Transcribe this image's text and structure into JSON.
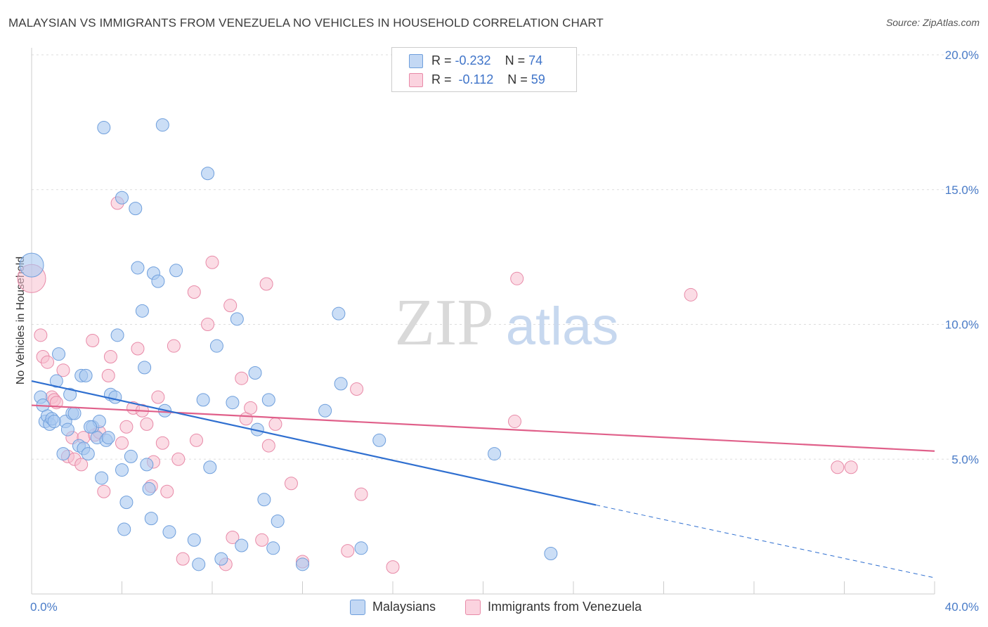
{
  "title": "MALAYSIAN VS IMMIGRANTS FROM VENEZUELA NO VEHICLES IN HOUSEHOLD CORRELATION CHART",
  "source": "Source: ZipAtlas.com",
  "watermark": {
    "zip": "ZIP",
    "atlas": "atlas"
  },
  "legend": {
    "rows": [
      {
        "r_label": "R = ",
        "r_value": "-0.232",
        "n_label": "N = ",
        "n_value": "74"
      },
      {
        "r_label": "R = ",
        "r_value": " -0.112",
        "n_label": "N = ",
        "n_value": "59"
      }
    ]
  },
  "bottom_legend": {
    "series1": "Malaysians",
    "series2": "Immigrants from Venezuela"
  },
  "colors": {
    "blue_fill": "#a9c8f0",
    "blue_stroke": "#6f9fdc",
    "blue_line": "#2f6fd0",
    "pink_fill": "#f7bfd0",
    "pink_stroke": "#e88aa8",
    "pink_line": "#e0608a",
    "tick_text": "#4a7cc8",
    "grid": "#dddddd"
  },
  "chart_data": {
    "type": "scatter",
    "title": "MALAYSIAN VS IMMIGRANTS FROM VENEZUELA NO VEHICLES IN HOUSEHOLD CORRELATION CHART",
    "xlabel": "",
    "ylabel": "No Vehicles in Household",
    "xlim": [
      0,
      40
    ],
    "ylim": [
      0,
      20
    ],
    "x_tick_labels": [
      "0.0%",
      "40.0%"
    ],
    "y_ticks": [
      5,
      10,
      15,
      20
    ],
    "y_tick_labels": [
      "5.0%",
      "10.0%",
      "15.0%",
      "20.0%"
    ],
    "series": [
      {
        "name": "Malaysians",
        "R": -0.232,
        "N": 74,
        "trend": {
          "x": [
            0,
            25
          ],
          "y": [
            7.9,
            3.3
          ],
          "dashed_to": [
            40,
            0.6
          ]
        },
        "points": [
          [
            0.0,
            12.2
          ],
          [
            0.4,
            7.3
          ],
          [
            0.5,
            7.0
          ],
          [
            0.6,
            6.4
          ],
          [
            0.7,
            6.6
          ],
          [
            0.8,
            6.3
          ],
          [
            0.9,
            6.5
          ],
          [
            1.1,
            7.9
          ],
          [
            1.2,
            8.9
          ],
          [
            1.4,
            5.2
          ],
          [
            1.5,
            6.4
          ],
          [
            1.6,
            6.1
          ],
          [
            1.7,
            7.4
          ],
          [
            1.8,
            6.7
          ],
          [
            1.9,
            6.7
          ],
          [
            2.1,
            5.5
          ],
          [
            2.2,
            8.1
          ],
          [
            2.3,
            5.4
          ],
          [
            2.4,
            8.1
          ],
          [
            2.5,
            5.2
          ],
          [
            2.7,
            6.2
          ],
          [
            2.9,
            5.8
          ],
          [
            3.0,
            6.4
          ],
          [
            3.1,
            4.3
          ],
          [
            3.2,
            17.3
          ],
          [
            3.3,
            5.7
          ],
          [
            3.4,
            5.8
          ],
          [
            3.5,
            7.4
          ],
          [
            3.7,
            7.3
          ],
          [
            3.8,
            9.6
          ],
          [
            4.0,
            4.6
          ],
          [
            4.1,
            2.4
          ],
          [
            4.2,
            3.4
          ],
          [
            4.4,
            5.1
          ],
          [
            4.6,
            14.3
          ],
          [
            4.7,
            12.1
          ],
          [
            4.9,
            10.5
          ],
          [
            5.0,
            8.4
          ],
          [
            5.1,
            4.8
          ],
          [
            5.2,
            3.9
          ],
          [
            5.3,
            2.8
          ],
          [
            5.4,
            11.9
          ],
          [
            5.6,
            11.6
          ],
          [
            5.8,
            17.4
          ],
          [
            5.9,
            6.8
          ],
          [
            6.1,
            2.3
          ],
          [
            6.4,
            12.0
          ],
          [
            7.2,
            2.0
          ],
          [
            7.4,
            1.1
          ],
          [
            7.6,
            7.2
          ],
          [
            7.8,
            15.6
          ],
          [
            7.9,
            4.7
          ],
          [
            8.2,
            9.2
          ],
          [
            8.4,
            1.3
          ],
          [
            8.9,
            7.1
          ],
          [
            9.1,
            10.2
          ],
          [
            9.3,
            1.8
          ],
          [
            9.9,
            8.2
          ],
          [
            10.0,
            6.1
          ],
          [
            10.3,
            3.5
          ],
          [
            10.5,
            7.2
          ],
          [
            10.7,
            1.7
          ],
          [
            10.9,
            2.7
          ],
          [
            12.0,
            1.1
          ],
          [
            13.0,
            6.8
          ],
          [
            13.6,
            10.4
          ],
          [
            13.7,
            7.8
          ],
          [
            14.6,
            1.7
          ],
          [
            15.4,
            5.7
          ],
          [
            20.5,
            5.2
          ],
          [
            23.0,
            1.5
          ],
          [
            1.0,
            6.4
          ],
          [
            4.0,
            14.7
          ],
          [
            2.6,
            6.2
          ]
        ]
      },
      {
        "name": "Immigrants from Venezuela",
        "R": -0.112,
        "N": 59,
        "trend": {
          "x": [
            0,
            40
          ],
          "y": [
            7.0,
            5.3
          ]
        },
        "points": [
          [
            0.0,
            11.7
          ],
          [
            0.4,
            9.6
          ],
          [
            0.5,
            8.8
          ],
          [
            0.7,
            8.6
          ],
          [
            0.9,
            7.3
          ],
          [
            1.0,
            7.2
          ],
          [
            1.1,
            7.1
          ],
          [
            1.4,
            8.3
          ],
          [
            1.6,
            5.1
          ],
          [
            1.8,
            5.8
          ],
          [
            1.9,
            5.0
          ],
          [
            2.2,
            4.8
          ],
          [
            2.3,
            5.8
          ],
          [
            2.7,
            9.4
          ],
          [
            2.8,
            5.9
          ],
          [
            3.0,
            6.0
          ],
          [
            3.2,
            3.8
          ],
          [
            3.4,
            8.1
          ],
          [
            3.5,
            8.8
          ],
          [
            3.8,
            14.5
          ],
          [
            4.0,
            5.6
          ],
          [
            4.2,
            6.2
          ],
          [
            4.5,
            6.9
          ],
          [
            4.7,
            9.1
          ],
          [
            4.9,
            6.8
          ],
          [
            5.1,
            6.3
          ],
          [
            5.3,
            4.0
          ],
          [
            5.4,
            4.9
          ],
          [
            5.6,
            7.3
          ],
          [
            5.8,
            5.6
          ],
          [
            6.0,
            3.8
          ],
          [
            6.3,
            9.2
          ],
          [
            6.5,
            5.0
          ],
          [
            6.7,
            1.3
          ],
          [
            7.2,
            11.2
          ],
          [
            7.3,
            5.7
          ],
          [
            7.8,
            10.0
          ],
          [
            8.0,
            12.3
          ],
          [
            8.6,
            1.1
          ],
          [
            8.8,
            10.7
          ],
          [
            8.9,
            2.1
          ],
          [
            9.3,
            8.0
          ],
          [
            9.5,
            6.5
          ],
          [
            9.7,
            6.9
          ],
          [
            10.2,
            2.0
          ],
          [
            10.4,
            11.5
          ],
          [
            10.5,
            5.5
          ],
          [
            10.8,
            6.3
          ],
          [
            11.5,
            4.1
          ],
          [
            12.0,
            1.2
          ],
          [
            14.0,
            1.6
          ],
          [
            14.4,
            7.6
          ],
          [
            14.6,
            3.7
          ],
          [
            16.0,
            1.0
          ],
          [
            21.4,
            6.4
          ],
          [
            21.5,
            11.7
          ],
          [
            29.2,
            11.1
          ],
          [
            35.7,
            4.7
          ],
          [
            36.3,
            4.7
          ]
        ]
      }
    ]
  }
}
